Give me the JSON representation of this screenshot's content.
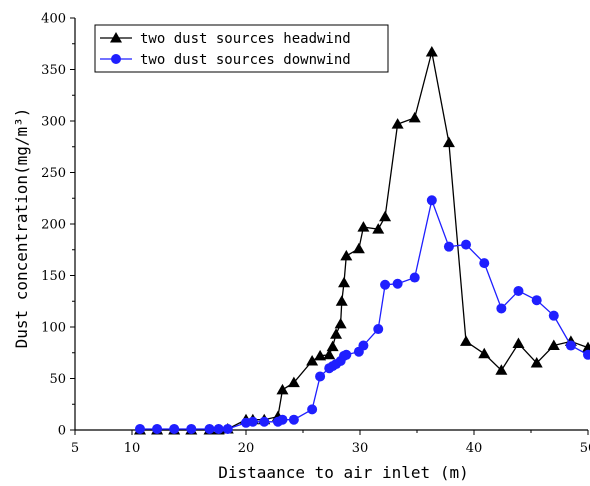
{
  "chart_data": {
    "type": "line",
    "xlabel": "Distaance to air inlet (m)",
    "ylabel": "Dust concentration(mg/m³)",
    "xlim": [
      5,
      50
    ],
    "ylim": [
      0,
      400
    ],
    "x_ticks": [
      "5",
      "10",
      "20",
      "30",
      "40",
      "50"
    ],
    "y_ticks": [
      "0",
      "50",
      "100",
      "150",
      "200",
      "250",
      "300",
      "350",
      "400"
    ],
    "grid": false,
    "legend_position": "top-left",
    "series": [
      {
        "name": "two dust sources headwind",
        "color": "#000000",
        "marker": "triangle",
        "points": [
          [
            10.7,
            0
          ],
          [
            12.2,
            0
          ],
          [
            13.7,
            0
          ],
          [
            15.2,
            0
          ],
          [
            16.8,
            0
          ],
          [
            17.6,
            0
          ],
          [
            18.4,
            1
          ],
          [
            20.0,
            10
          ],
          [
            20.6,
            10
          ],
          [
            21.6,
            10
          ],
          [
            22.8,
            13
          ],
          [
            23.2,
            39
          ],
          [
            24.2,
            46
          ],
          [
            25.8,
            67
          ],
          [
            26.5,
            72
          ],
          [
            27.3,
            73
          ],
          [
            27.6,
            81
          ],
          [
            27.9,
            93
          ],
          [
            28.3,
            103
          ],
          [
            28.4,
            125
          ],
          [
            28.6,
            143
          ],
          [
            28.8,
            169
          ],
          [
            29.9,
            176
          ],
          [
            30.3,
            197
          ],
          [
            31.6,
            195
          ],
          [
            32.2,
            207
          ],
          [
            33.3,
            297
          ],
          [
            34.8,
            303
          ],
          [
            36.3,
            367
          ],
          [
            37.8,
            279
          ],
          [
            39.3,
            86
          ],
          [
            40.9,
            74
          ],
          [
            42.4,
            58
          ],
          [
            43.9,
            84
          ],
          [
            45.5,
            65
          ],
          [
            47.0,
            82
          ],
          [
            48.5,
            86
          ],
          [
            50.0,
            80
          ]
        ]
      },
      {
        "name": "two dust sources downwind",
        "color": "#1f1fff",
        "marker": "circle",
        "points": [
          [
            10.7,
            1
          ],
          [
            12.2,
            1
          ],
          [
            13.7,
            1
          ],
          [
            15.2,
            1
          ],
          [
            16.8,
            1
          ],
          [
            17.6,
            1
          ],
          [
            18.4,
            1
          ],
          [
            20.0,
            7
          ],
          [
            20.6,
            8
          ],
          [
            21.6,
            8
          ],
          [
            22.8,
            8
          ],
          [
            23.2,
            10
          ],
          [
            24.2,
            10
          ],
          [
            25.8,
            20
          ],
          [
            26.5,
            52
          ],
          [
            27.3,
            60
          ],
          [
            27.6,
            62
          ],
          [
            27.9,
            64
          ],
          [
            28.3,
            67
          ],
          [
            28.6,
            72
          ],
          [
            28.8,
            73
          ],
          [
            29.9,
            76
          ],
          [
            30.3,
            82
          ],
          [
            31.6,
            98
          ],
          [
            32.2,
            141
          ],
          [
            33.3,
            142
          ],
          [
            34.8,
            148
          ],
          [
            36.3,
            223
          ],
          [
            37.8,
            178
          ],
          [
            39.3,
            180
          ],
          [
            40.9,
            162
          ],
          [
            42.4,
            118
          ],
          [
            43.9,
            135
          ],
          [
            45.5,
            126
          ],
          [
            47.0,
            111
          ],
          [
            48.5,
            82
          ],
          [
            50.0,
            73
          ]
        ]
      }
    ]
  }
}
